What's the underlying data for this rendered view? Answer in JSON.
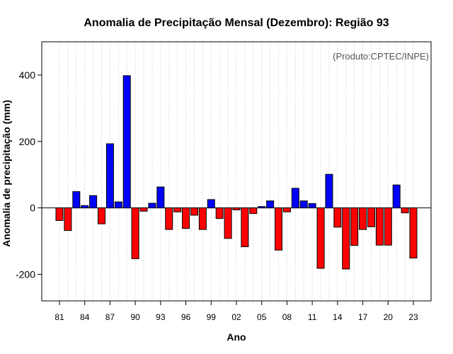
{
  "chart_data": {
    "type": "bar",
    "title": "Anomalia de Precipitação Mensal (Dezembro): Região 93",
    "credit": "(Produto:CPTEC/INPE)",
    "xlabel": "Ano",
    "ylabel": "Anomalia de precipitação (mm)",
    "ylim": [
      -280,
      500
    ],
    "yticks": [
      -200,
      0,
      200,
      400
    ],
    "ytick_labels": [
      "-200",
      "0",
      "200",
      "400"
    ],
    "x_tick_labels": [
      "81",
      "84",
      "87",
      "90",
      "93",
      "96",
      "99",
      "02",
      "05",
      "08",
      "11",
      "14",
      "17",
      "20",
      "23"
    ],
    "x_tick_years": [
      1981,
      1984,
      1987,
      1990,
      1993,
      1996,
      1999,
      2002,
      2005,
      2008,
      2011,
      2014,
      2017,
      2020,
      2023
    ],
    "grid": true,
    "positive_color": "#0000ff",
    "negative_color": "#ff0000",
    "categories": [
      1981,
      1982,
      1983,
      1984,
      1985,
      1986,
      1987,
      1988,
      1989,
      1990,
      1991,
      1992,
      1993,
      1994,
      1995,
      1996,
      1997,
      1998,
      1999,
      2000,
      2001,
      2002,
      2003,
      2004,
      2005,
      2006,
      2007,
      2008,
      2009,
      2010,
      2011,
      2012,
      2013,
      2014,
      2015,
      2016,
      2017,
      2018,
      2019,
      2020,
      2021,
      2022,
      2023
    ],
    "values": [
      -38,
      -68,
      49,
      7,
      37,
      -48,
      193,
      18,
      398,
      -153,
      -10,
      14,
      63,
      -65,
      -12,
      -62,
      -22,
      -65,
      25,
      -32,
      -92,
      -6,
      -117,
      -17,
      4,
      21,
      -127,
      -12,
      59,
      21,
      13,
      -182,
      101,
      -58,
      -184,
      -113,
      -65,
      -57,
      -112,
      -112,
      69,
      -15,
      -151
    ]
  }
}
